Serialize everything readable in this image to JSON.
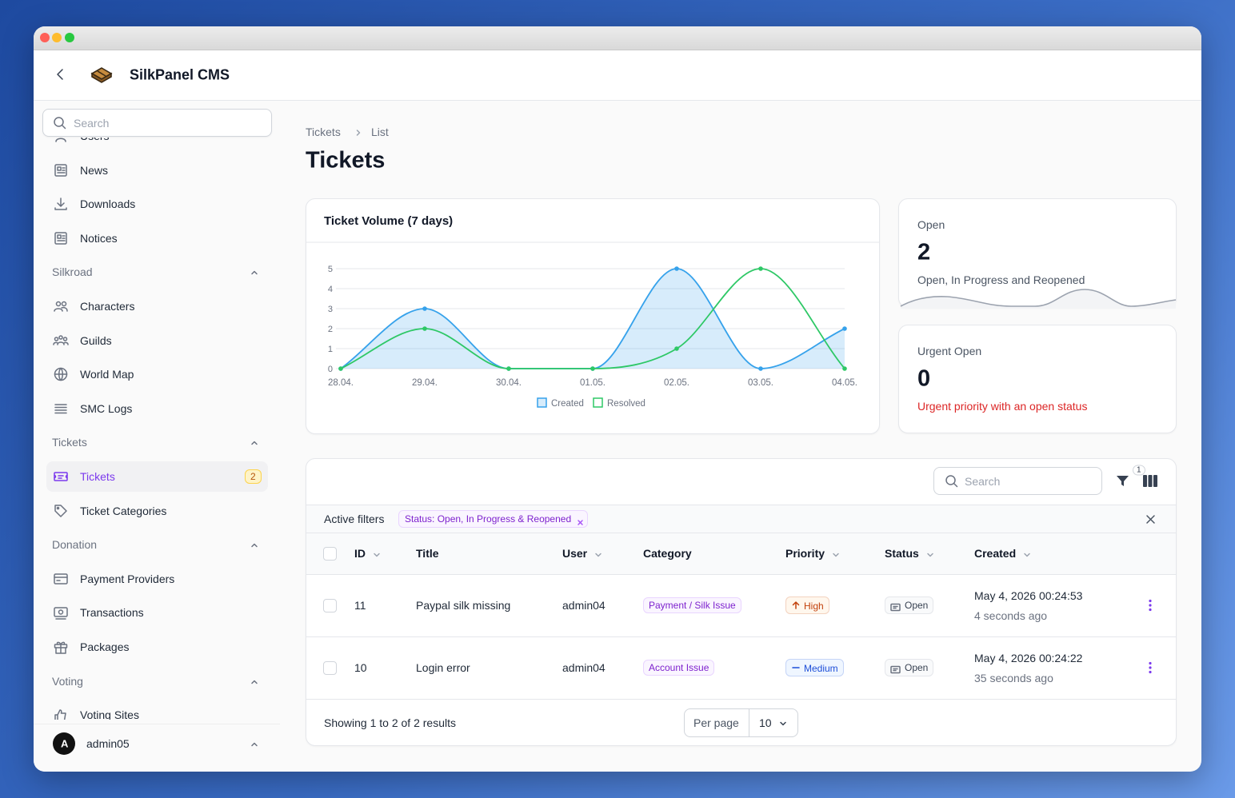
{
  "header": {
    "app_name": "SilkPanel CMS"
  },
  "sidebar": {
    "search_placeholder": "Search",
    "top_items": [
      {
        "label": "Users"
      },
      {
        "label": "News"
      },
      {
        "label": "Downloads"
      },
      {
        "label": "Notices"
      }
    ],
    "groups": [
      {
        "label": "Silkroad",
        "items": [
          {
            "label": "Characters"
          },
          {
            "label": "Guilds"
          },
          {
            "label": "World Map"
          },
          {
            "label": "SMC Logs"
          }
        ]
      },
      {
        "label": "Tickets",
        "items": [
          {
            "label": "Tickets",
            "badge": 2,
            "active": true
          },
          {
            "label": "Ticket Categories"
          }
        ]
      },
      {
        "label": "Donation",
        "items": [
          {
            "label": "Payment Providers"
          },
          {
            "label": "Transactions"
          },
          {
            "label": "Packages"
          }
        ]
      },
      {
        "label": "Voting",
        "items": [
          {
            "label": "Voting Sites"
          }
        ]
      }
    ],
    "user": {
      "initial": "A",
      "name": "admin05"
    }
  },
  "breadcrumb": [
    "Tickets",
    "List"
  ],
  "page_title": "Tickets",
  "chart_data": {
    "type": "line",
    "title": "Ticket Volume (7 days)",
    "categories": [
      "28.04.",
      "29.04.",
      "30.04.",
      "01.05.",
      "02.05.",
      "03.05.",
      "04.05."
    ],
    "series": [
      {
        "name": "Created",
        "color": "#36a2eb",
        "fill": "rgba(54,162,235,0.2)",
        "values": [
          0,
          3,
          0,
          0,
          5,
          0,
          2
        ]
      },
      {
        "name": "Resolved",
        "color": "#2ec866",
        "values": [
          0,
          2,
          0,
          0,
          1,
          5,
          0
        ]
      }
    ],
    "ylim": [
      0,
      5
    ],
    "yticks": [
      0,
      1,
      2,
      3,
      4,
      5
    ],
    "grid": true,
    "legend": "bottom"
  },
  "stats": [
    {
      "label": "Open",
      "value": 2,
      "description": "Open, In Progress and Reopened",
      "description_color": "#4b5563"
    },
    {
      "label": "Urgent Open",
      "value": 0,
      "description": "Urgent priority with an open status",
      "description_color": "#dc2626"
    }
  ],
  "table": {
    "search_placeholder": "Search",
    "filter_count": 1,
    "active_filters_label": "Active filters",
    "filters": [
      "Status: Open, In Progress & Reopened"
    ],
    "columns": [
      {
        "label": "ID",
        "sortable": true
      },
      {
        "label": "Title",
        "sortable": false
      },
      {
        "label": "User",
        "sortable": true
      },
      {
        "label": "Category",
        "sortable": false
      },
      {
        "label": "Priority",
        "sortable": true
      },
      {
        "label": "Status",
        "sortable": true
      },
      {
        "label": "Created",
        "sortable": true
      }
    ],
    "rows": [
      {
        "id": 11,
        "title": "Paypal silk missing",
        "user": "admin04",
        "category": "Payment / Silk Issue",
        "priority": "High",
        "priority_color": "#c2410c",
        "priority_bg": "#fff7ed",
        "status": "Open",
        "created": "May 4, 2026 00:24:53",
        "created_relative": "4 seconds ago"
      },
      {
        "id": 10,
        "title": "Login error",
        "user": "admin04",
        "category": "Account Issue",
        "priority": "Medium",
        "priority_color": "#1d4ed8",
        "priority_bg": "#eff6ff",
        "status": "Open",
        "created": "May 4, 2026 00:24:22",
        "created_relative": "35 seconds ago"
      }
    ],
    "summary": "Showing 1 to 2 of 2 results",
    "per_page_label": "Per page",
    "per_page": 10
  }
}
